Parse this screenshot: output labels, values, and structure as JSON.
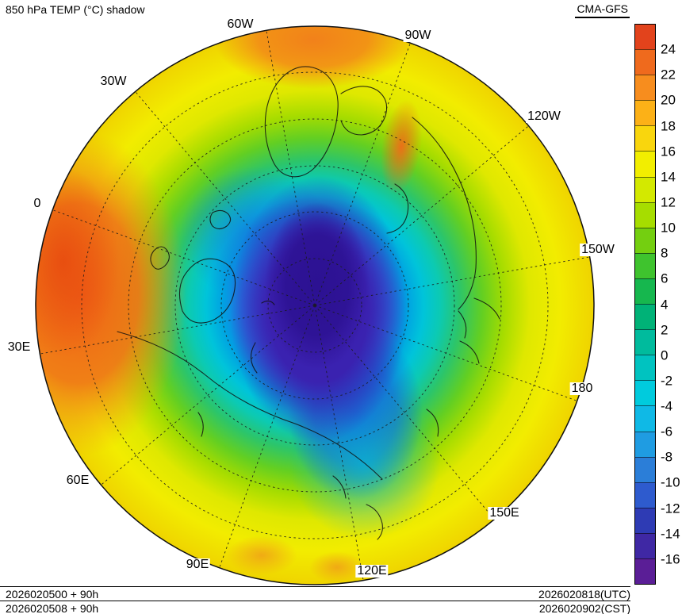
{
  "header": {
    "title": "850 hPa TEMP (°C) shadow",
    "model": "CMA-GFS"
  },
  "footer": {
    "init_line1": "2026020500 + 90h",
    "init_line2": "2026020508 + 90h",
    "valid_line1": "2026020818(UTC)",
    "valid_line2": "2026020902(CST)"
  },
  "map": {
    "lon_labels": [
      "60W",
      "90W",
      "30W",
      "120W",
      "0",
      "150W",
      "30E",
      "180",
      "60E",
      "150E",
      "90E",
      "120E"
    ]
  },
  "colorbar": {
    "ticks": [
      24,
      22,
      20,
      18,
      16,
      14,
      12,
      10,
      8,
      6,
      4,
      2,
      0,
      -2,
      -4,
      -6,
      -8,
      -10,
      -12,
      -14,
      -16
    ],
    "colors": [
      "#e2431c",
      "#ef6a1d",
      "#f78d1e",
      "#fcb117",
      "#f9d60d",
      "#f2ee00",
      "#d3e900",
      "#a6dd00",
      "#74cf10",
      "#3fc32e",
      "#16b74e",
      "#00b277",
      "#00bb9d",
      "#00c3c0",
      "#00cbdd",
      "#0fb9e6",
      "#1f9ce2",
      "#2b7ed8",
      "#2e5bce",
      "#2e3bb4",
      "#3f28a4",
      "#5a1e96"
    ]
  },
  "chart_data": {
    "type": "heatmap",
    "title": "850 hPa TEMP (°C) shadow",
    "model": "CMA-GFS",
    "projection": "north-polar-stereographic",
    "units": "°C",
    "colorbar_ticks": [
      24,
      22,
      20,
      18,
      16,
      14,
      12,
      10,
      8,
      6,
      4,
      2,
      0,
      -2,
      -4,
      -6,
      -8,
      -10,
      -12,
      -14,
      -16
    ],
    "colorbar_colors_top_to_bottom": [
      "#e2431c",
      "#ef6a1d",
      "#f78d1e",
      "#fcb117",
      "#f9d60d",
      "#f2ee00",
      "#d3e900",
      "#a6dd00",
      "#74cf10",
      "#3fc32e",
      "#16b74e",
      "#00b277",
      "#00bb9d",
      "#00c3c0",
      "#00cbdd",
      "#0fb9e6",
      "#1f9ce2",
      "#2b7ed8",
      "#2e5bce",
      "#2e3bb4",
      "#3f28a4",
      "#5a1e96"
    ],
    "longitude_labels": [
      "60W",
      "90W",
      "30W",
      "120W",
      "0",
      "150W",
      "30E",
      "180",
      "60E",
      "150E",
      "90E",
      "120E"
    ],
    "init_runs": [
      "2026020500 + 90h",
      "2026020508 + 90h"
    ],
    "valid_times": [
      "2026020818(UTC)",
      "2026020902(CST)"
    ],
    "field_extremes": {
      "arctic_min_c": "< -16",
      "subtropical_max_c": "> 24",
      "cold_core_location": "Arctic basin, pole to Siberian side",
      "warmest_sector": "0°–30°E near outer boundary (North Africa), > 22°C"
    },
    "legend_position": "right",
    "grid": "dashed lat/lon graticule every 30° longitude"
  }
}
